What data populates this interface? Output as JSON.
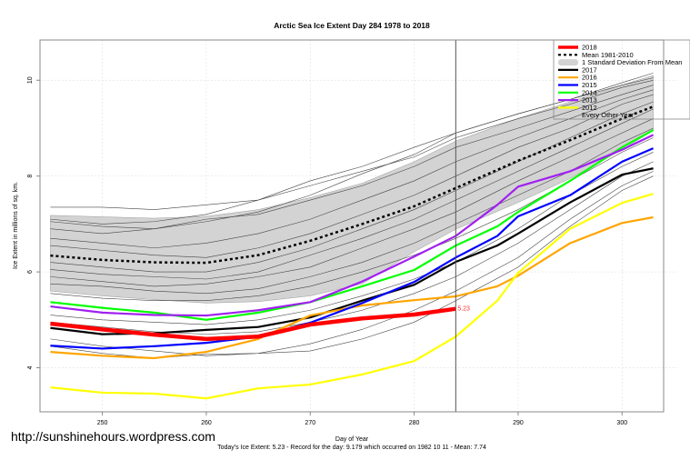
{
  "chart_data": {
    "type": "line",
    "title": "Arctic Sea Ice Extent Day 284 1978 to 2018",
    "xlabel": "Day of Year",
    "ylabel": "Ice Extent in millions of sq. km.",
    "xlim": [
      244,
      304
    ],
    "ylim": [
      3.08,
      10.84
    ],
    "xticks": [
      250,
      260,
      270,
      280,
      290,
      300
    ],
    "yticks": [
      4,
      6,
      8,
      10
    ],
    "grid": true,
    "legend_position": "top-right",
    "current_day": 284,
    "current_value_label": "5.23",
    "footnote": "Today's Ice Extent: 5.23  - Record for the day: 9.179 which occurred on 1982 10 11  - Mean: 7.74",
    "legend": [
      {
        "label": "2018",
        "color": "#ff0000",
        "style": "thick"
      },
      {
        "label": "Mean 1981-2010",
        "color": "#000000",
        "style": "dashed"
      },
      {
        "label": "1 Standard Deviation From Mean",
        "color": "#d3d3d3",
        "style": "band"
      },
      {
        "label": "2017",
        "color": "#000000",
        "style": "solid"
      },
      {
        "label": "2016",
        "color": "#ffa500",
        "style": "solid"
      },
      {
        "label": "2015",
        "color": "#0000ff",
        "style": "solid"
      },
      {
        "label": "2014",
        "color": "#00ff00",
        "style": "solid"
      },
      {
        "label": "2013",
        "color": "#a020f0",
        "style": "solid"
      },
      {
        "label": "2012",
        "color": "#ffff00",
        "style": "solid"
      },
      {
        "label": "Every Other Year",
        "color": "#555555",
        "style": "thin"
      }
    ],
    "band": {
      "x": [
        245,
        250,
        255,
        260,
        265,
        270,
        275,
        280,
        284,
        290,
        295,
        300,
        303
      ],
      "upper": [
        7.18,
        7.15,
        7.12,
        7.16,
        7.3,
        7.55,
        7.85,
        8.3,
        8.73,
        9.2,
        9.55,
        9.9,
        10.1
      ],
      "lower": [
        5.6,
        5.5,
        5.42,
        5.35,
        5.38,
        5.5,
        5.75,
        6.42,
        6.89,
        7.45,
        7.95,
        8.55,
        8.95
      ]
    },
    "series": [
      {
        "name": "Mean 1981-2010",
        "color": "#000000",
        "dash": true,
        "x": [
          245,
          250,
          255,
          260,
          265,
          270,
          275,
          280,
          284,
          290,
          295,
          300,
          303
        ],
        "y": [
          6.34,
          6.25,
          6.2,
          6.19,
          6.35,
          6.65,
          7.0,
          7.37,
          7.75,
          8.32,
          8.75,
          9.2,
          9.45
        ]
      },
      {
        "name": "2017",
        "color": "#000000",
        "width": 2.2,
        "x": [
          245,
          250,
          255,
          260,
          265,
          270,
          275,
          280,
          284,
          288,
          290,
          295,
          300,
          303
        ],
        "y": [
          4.83,
          4.7,
          4.72,
          4.79,
          4.85,
          5.05,
          5.4,
          5.73,
          6.21,
          6.55,
          6.8,
          7.45,
          8.03,
          8.16
        ]
      },
      {
        "name": "2016",
        "color": "#ffa500",
        "width": 2.2,
        "x": [
          245,
          250,
          255,
          260,
          265,
          270,
          275,
          280,
          284,
          288,
          290,
          295,
          300,
          303
        ],
        "y": [
          4.33,
          4.25,
          4.2,
          4.33,
          4.6,
          5.09,
          5.3,
          5.41,
          5.49,
          5.7,
          5.92,
          6.6,
          7.02,
          7.14
        ]
      },
      {
        "name": "2015",
        "color": "#0000ff",
        "width": 2.2,
        "x": [
          245,
          250,
          255,
          260,
          265,
          270,
          275,
          280,
          284,
          288,
          290,
          295,
          300,
          303
        ],
        "y": [
          4.46,
          4.4,
          4.45,
          4.52,
          4.65,
          4.94,
          5.35,
          5.79,
          6.3,
          6.75,
          7.16,
          7.6,
          8.3,
          8.58
        ]
      },
      {
        "name": "2014",
        "color": "#00ff00",
        "width": 2.2,
        "x": [
          245,
          250,
          255,
          260,
          265,
          270,
          275,
          280,
          284,
          288,
          290,
          295,
          300,
          303
        ],
        "y": [
          5.37,
          5.25,
          5.15,
          5.0,
          5.15,
          5.37,
          5.7,
          6.04,
          6.55,
          6.95,
          7.25,
          7.9,
          8.6,
          8.96
        ]
      },
      {
        "name": "2013",
        "color": "#a020f0",
        "width": 2.2,
        "x": [
          245,
          250,
          255,
          260,
          265,
          270,
          275,
          280,
          284,
          288,
          290,
          295,
          300,
          303
        ],
        "y": [
          5.28,
          5.15,
          5.1,
          5.09,
          5.2,
          5.37,
          5.8,
          6.32,
          6.75,
          7.4,
          7.78,
          8.1,
          8.55,
          8.86
        ]
      },
      {
        "name": "2012",
        "color": "#ffff00",
        "width": 2.2,
        "x": [
          245,
          250,
          255,
          260,
          265,
          270,
          275,
          280,
          284,
          288,
          290,
          295,
          300,
          303
        ],
        "y": [
          3.59,
          3.48,
          3.46,
          3.36,
          3.57,
          3.65,
          3.86,
          4.14,
          4.65,
          5.4,
          5.98,
          6.9,
          7.44,
          7.63
        ]
      },
      {
        "name": "2018",
        "color": "#ff0000",
        "width": 4.5,
        "x": [
          245,
          250,
          255,
          260,
          265,
          270,
          275,
          280,
          284
        ],
        "y": [
          4.92,
          4.8,
          4.69,
          4.6,
          4.65,
          4.9,
          5.03,
          5.11,
          5.23
        ]
      }
    ],
    "other_years": [
      {
        "y": [
          7.35,
          7.35,
          7.3,
          7.4,
          7.5,
          7.9,
          8.2,
          8.6,
          8.9,
          9.3,
          9.6,
          9.9,
          10.05
        ]
      },
      {
        "y": [
          7.1,
          7.0,
          7.05,
          7.2,
          7.5,
          7.8,
          8.1,
          8.4,
          8.8,
          9.2,
          9.5,
          9.85,
          10.0
        ]
      },
      {
        "y": [
          7.05,
          6.95,
          6.9,
          7.05,
          7.25,
          7.6,
          8.05,
          8.45,
          8.9,
          9.3,
          9.6,
          9.95,
          10.15
        ]
      },
      {
        "y": [
          6.9,
          6.8,
          6.9,
          7.1,
          7.2,
          7.5,
          7.8,
          8.2,
          8.6,
          9.0,
          9.35,
          9.7,
          9.9
        ]
      },
      {
        "y": [
          6.7,
          6.6,
          6.5,
          6.6,
          6.8,
          7.1,
          7.5,
          7.9,
          8.3,
          8.8,
          9.2,
          9.6,
          9.8
        ]
      },
      {
        "y": [
          6.55,
          6.45,
          6.35,
          6.3,
          6.5,
          6.8,
          7.2,
          7.6,
          8.0,
          8.6,
          9.0,
          9.5,
          9.7
        ]
      },
      {
        "y": [
          6.2,
          6.1,
          6.0,
          6.0,
          6.2,
          6.5,
          6.9,
          7.3,
          7.7,
          8.3,
          8.8,
          9.3,
          9.55
        ]
      },
      {
        "y": [
          6.05,
          5.95,
          5.9,
          5.85,
          6.0,
          6.35,
          6.7,
          7.1,
          7.5,
          8.1,
          8.6,
          9.1,
          9.4
        ]
      },
      {
        "y": [
          5.9,
          5.8,
          5.7,
          5.75,
          5.9,
          6.1,
          6.5,
          6.9,
          7.25,
          7.9,
          8.4,
          8.9,
          9.2
        ]
      },
      {
        "y": [
          5.75,
          5.7,
          5.6,
          5.55,
          5.65,
          5.9,
          6.2,
          6.6,
          7.0,
          7.6,
          8.1,
          8.7,
          9.0
        ]
      },
      {
        "y": [
          5.55,
          5.45,
          5.4,
          5.4,
          5.5,
          5.7,
          6.0,
          6.35,
          6.7,
          7.3,
          7.9,
          8.5,
          8.8
        ]
      },
      {
        "y": [
          5.1,
          5.0,
          4.95,
          4.9,
          5.0,
          5.2,
          5.5,
          5.85,
          6.2,
          6.9,
          7.6,
          8.2,
          8.5
        ]
      },
      {
        "y": [
          4.95,
          4.85,
          4.75,
          4.7,
          4.75,
          4.95,
          5.2,
          5.55,
          5.9,
          6.6,
          7.3,
          8.0,
          8.3
        ]
      },
      {
        "y": [
          4.6,
          4.45,
          4.35,
          4.25,
          4.3,
          4.5,
          4.8,
          5.2,
          5.6,
          6.3,
          7.1,
          7.8,
          8.1
        ]
      },
      {
        "y": [
          4.45,
          4.3,
          4.2,
          4.28,
          4.3,
          4.35,
          4.6,
          4.95,
          5.4,
          6.1,
          6.95,
          7.7,
          8.0
        ]
      }
    ],
    "other_years_x": [
      245,
      250,
      255,
      260,
      265,
      270,
      275,
      280,
      284,
      290,
      295,
      300,
      303
    ]
  },
  "footer": {
    "url": "http://sunshinehours.wordpress.com"
  }
}
